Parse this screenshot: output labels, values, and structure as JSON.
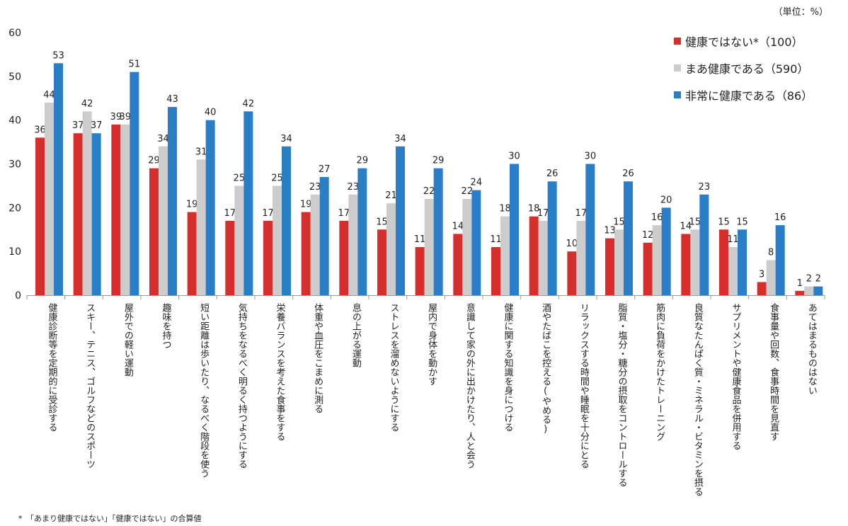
{
  "unit_note": "（単位：%）",
  "footnote": "*　「あまり健康ではない」「健康ではない」の合算値",
  "colors": {
    "red": "#d62d2d",
    "gray": "#cccccc",
    "blue": "#2a7ec8",
    "axis": "#999999"
  },
  "chart_data": {
    "type": "bar",
    "title": "",
    "xlabel": "",
    "ylabel": "",
    "ylim": [
      0,
      60
    ],
    "yticks": [
      0,
      10,
      20,
      30,
      40,
      50,
      60
    ],
    "grid": false,
    "legend_position": "top-right",
    "categories": [
      "健康診断等を定期的に受診する",
      "スキー、テニス、ゴルフなどのスポーツ",
      "屋外での軽い運動",
      "趣味を持つ",
      "短い距離は歩いたり、なるべく階段を使う",
      "気持ちをなるべく明るく持つようにする",
      "栄養バランスを考えた食事をする",
      "体重や血圧をこまめに測る",
      "息の上がる運動",
      "ストレスを溜めないようにする",
      "屋内で身体を動かす",
      "意識して家の外に出かけたり、人と会う",
      "健康に関する知識を身につける",
      "酒やたばこを控える(やめる)",
      "リラックスする時間や睡眠を十分にとる",
      "脂質・塩分・糖分の摂取をコントロールする",
      "筋肉に負荷をかけたトレーニング",
      "良質なたんぱく質・ミネラル・ビタミンを摂る",
      "サプリメントや健康食品を併用する",
      "食事量や回数、食事時間を見直す",
      "あてはまるものはない"
    ],
    "series": [
      {
        "name": "健康ではない*（100）",
        "color": "#d62d2d",
        "values": [
          36,
          37,
          39,
          29,
          19,
          17,
          17,
          19,
          17,
          15,
          11,
          14,
          11,
          18,
          10,
          13,
          12,
          14,
          15,
          3,
          1
        ]
      },
      {
        "name": "まあ健康である（590）",
        "color": "#cccccc",
        "values": [
          44,
          42,
          39,
          34,
          31,
          25,
          25,
          23,
          23,
          21,
          22,
          22,
          18,
          17,
          17,
          15,
          16,
          15,
          11,
          8,
          2
        ]
      },
      {
        "name": "非常に健康である（86）",
        "color": "#2a7ec8",
        "values": [
          53,
          37,
          51,
          43,
          40,
          42,
          34,
          27,
          29,
          34,
          29,
          24,
          30,
          26,
          30,
          26,
          20,
          23,
          15,
          16,
          2
        ]
      }
    ]
  }
}
